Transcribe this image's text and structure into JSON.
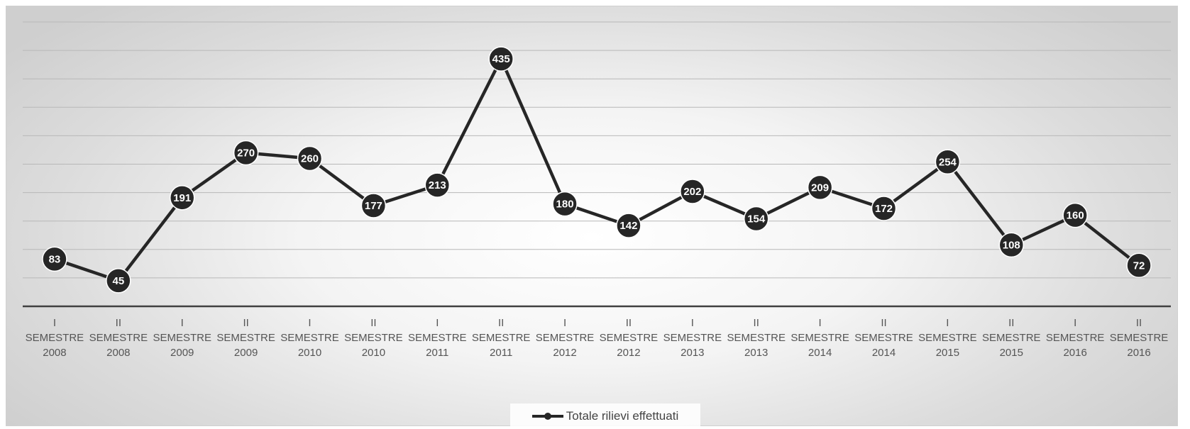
{
  "chart_data": {
    "type": "line",
    "categories": [
      [
        "I",
        "SEMESTRE",
        "2008"
      ],
      [
        "II",
        "SEMESTRE",
        "2008"
      ],
      [
        "I",
        "SEMESTRE",
        "2009"
      ],
      [
        "II",
        "SEMESTRE",
        "2009"
      ],
      [
        "I",
        "SEMESTRE",
        "2010"
      ],
      [
        "II",
        "SEMESTRE",
        "2010"
      ],
      [
        "I",
        "SEMESTRE",
        "2011"
      ],
      [
        "II",
        "SEMESTRE",
        "2011"
      ],
      [
        "I",
        "SEMESTRE",
        "2012"
      ],
      [
        "II",
        "SEMESTRE",
        "2012"
      ],
      [
        "I",
        "SEMESTRE",
        "2013"
      ],
      [
        "II",
        "SEMESTRE",
        "2013"
      ],
      [
        "I",
        "SEMESTRE",
        "2014"
      ],
      [
        "II",
        "SEMESTRE",
        "2014"
      ],
      [
        "I",
        "SEMESTRE",
        "2015"
      ],
      [
        "II",
        "SEMESTRE",
        "2015"
      ],
      [
        "I",
        "SEMESTRE",
        "2016"
      ],
      [
        "II",
        "SEMESTRE",
        "2016"
      ]
    ],
    "series": [
      {
        "name": "Totale rilievi effettuati",
        "values": [
          83,
          45,
          191,
          270,
          260,
          177,
          213,
          435,
          180,
          142,
          202,
          154,
          209,
          172,
          254,
          108,
          160,
          72
        ],
        "color": "#262626"
      }
    ],
    "ylim": [
      0,
      500
    ],
    "grid": true,
    "legend": "bottom",
    "data_labels": true
  }
}
